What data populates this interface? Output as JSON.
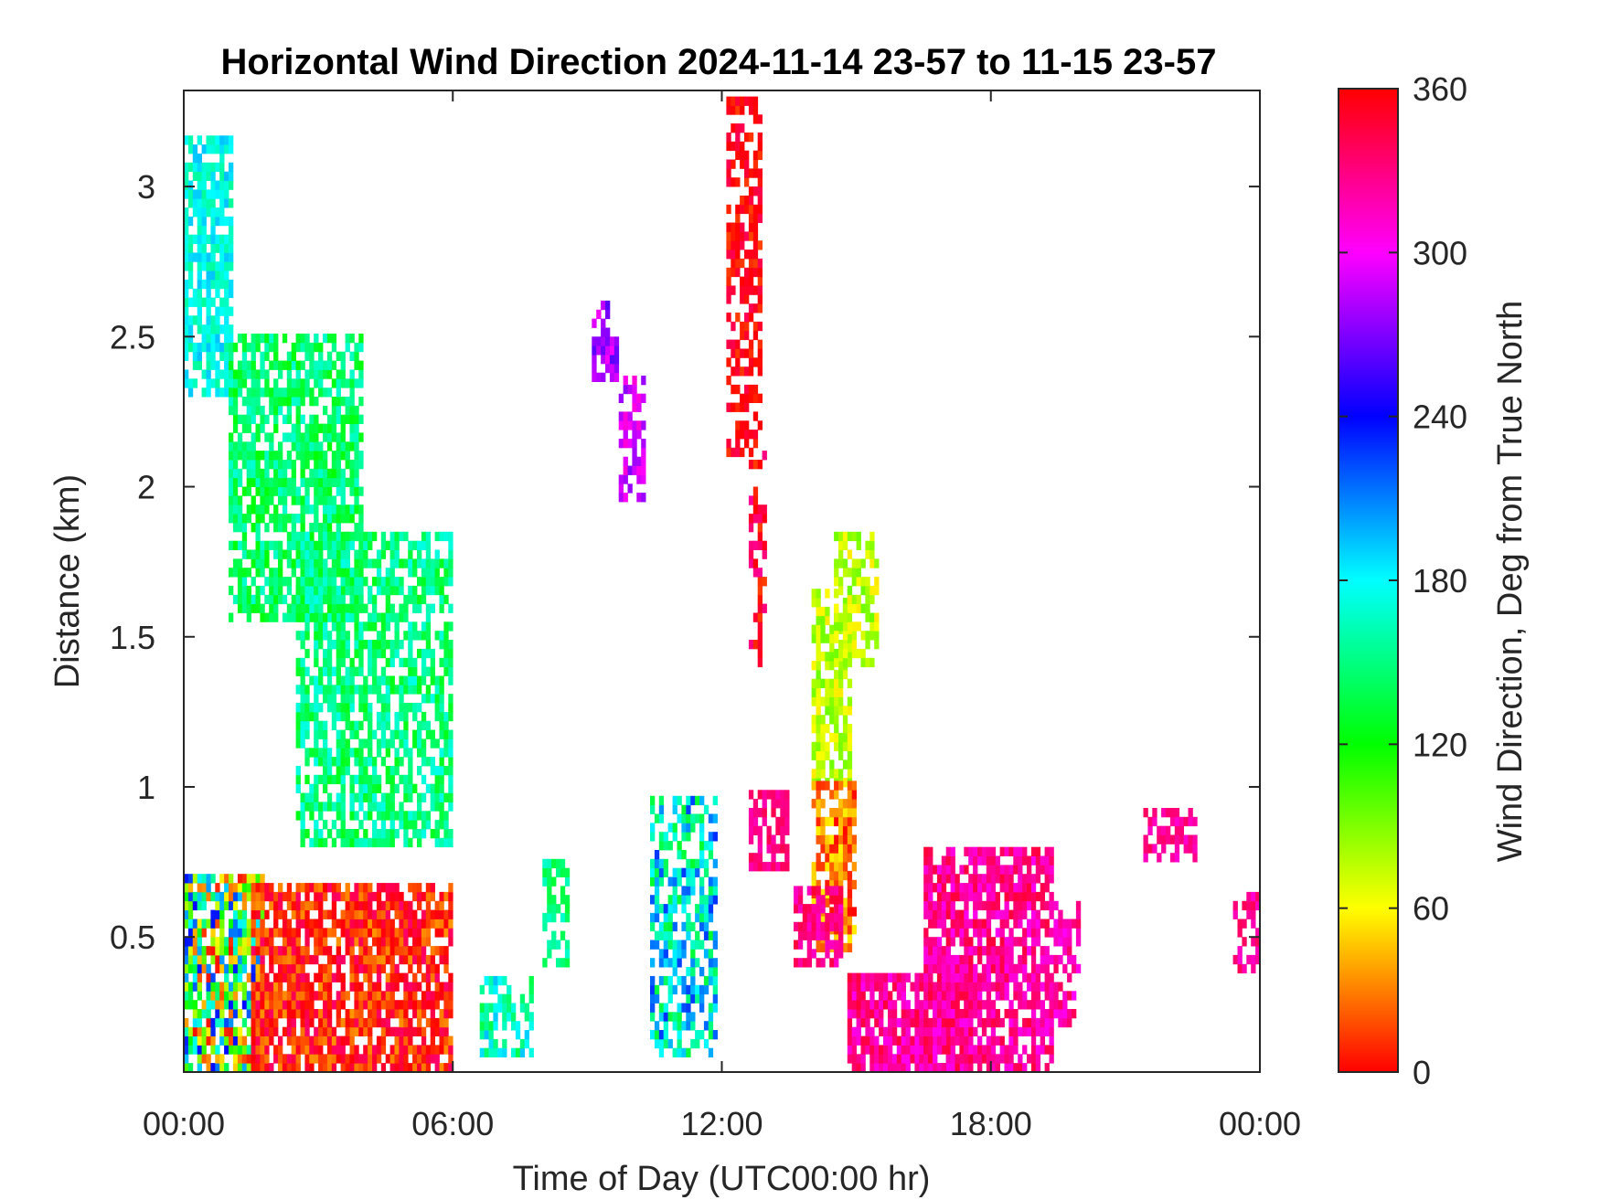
{
  "chart_data": {
    "type": "heatmap",
    "title": "Horizontal Wind Direction 2024-11-14 23-57 to 11-15 23-57",
    "xlabel": "Time of Day (UTC00:00 hr)",
    "ylabel": "Distance (km)",
    "colorbar_label": "Wind Direction, Deg from True North",
    "xlim": [
      0,
      24
    ],
    "ylim": [
      0.05,
      3.32
    ],
    "clim": [
      0,
      360
    ],
    "x_ticks": [
      0,
      6,
      12,
      18,
      24
    ],
    "x_tick_labels": [
      "00:00",
      "06:00",
      "12:00",
      "18:00",
      "00:00"
    ],
    "y_ticks": [
      0.5,
      1,
      1.5,
      2,
      2.5,
      3
    ],
    "y_tick_labels": [
      "0.5",
      "1",
      "1.5",
      "2",
      "2.5",
      "3"
    ],
    "c_ticks": [
      0,
      60,
      120,
      180,
      240,
      300,
      360
    ],
    "c_tick_labels": [
      "0",
      "60",
      "120",
      "180",
      "240",
      "300",
      "360"
    ],
    "colormap": [
      "#ff0000",
      "#ffff00",
      "#00ff00",
      "#00ffff",
      "#0000ff",
      "#ff00ff",
      "#ff0000"
    ],
    "grid": false,
    "regions": [
      {
        "t0": 0.0,
        "t1": 1.1,
        "z0": 2.3,
        "z1": 3.15,
        "dir": 175,
        "spread": 20,
        "density": 0.75
      },
      {
        "t0": 1.0,
        "t1": 4.0,
        "z0": 1.55,
        "z1": 2.5,
        "dir": 145,
        "spread": 25,
        "density": 0.7
      },
      {
        "t0": 2.5,
        "t1": 6.0,
        "z0": 0.8,
        "z1": 1.85,
        "dir": 150,
        "spread": 25,
        "density": 0.65
      },
      {
        "t0": 0.0,
        "t1": 1.8,
        "z0": 0.05,
        "z1": 0.7,
        "dir": 120,
        "spread": 120,
        "density": 0.8
      },
      {
        "t0": 1.5,
        "t1": 6.0,
        "z0": 0.05,
        "z1": 0.68,
        "dir": 5,
        "spread": 30,
        "density": 0.8
      },
      {
        "t0": 6.6,
        "t1": 7.8,
        "z0": 0.1,
        "z1": 0.35,
        "dir": 165,
        "spread": 30,
        "density": 0.6
      },
      {
        "t0": 8.0,
        "t1": 8.6,
        "z0": 0.4,
        "z1": 0.75,
        "dir": 150,
        "spread": 20,
        "density": 0.45
      },
      {
        "t0": 9.1,
        "t1": 9.7,
        "z0": 2.35,
        "z1": 2.62,
        "dir": 280,
        "spread": 20,
        "density": 0.75
      },
      {
        "t0": 9.7,
        "t1": 10.3,
        "z0": 1.95,
        "z1": 2.35,
        "dir": 290,
        "spread": 20,
        "density": 0.55
      },
      {
        "t0": 10.4,
        "t1": 11.9,
        "z0": 0.1,
        "z1": 0.95,
        "dir": 180,
        "spread": 50,
        "density": 0.6
      },
      {
        "t0": 12.1,
        "t1": 12.9,
        "z0": 2.1,
        "z1": 3.3,
        "dir": 358,
        "spread": 18,
        "density": 0.6
      },
      {
        "t0": 12.6,
        "t1": 13.0,
        "z0": 1.4,
        "z1": 2.1,
        "dir": 350,
        "spread": 25,
        "density": 0.45
      },
      {
        "t0": 12.6,
        "t1": 13.5,
        "z0": 0.72,
        "z1": 0.98,
        "dir": 330,
        "spread": 12,
        "density": 0.7
      },
      {
        "t0": 14.0,
        "t1": 14.9,
        "z0": 1.0,
        "z1": 1.65,
        "dir": 75,
        "spread": 20,
        "density": 0.7
      },
      {
        "t0": 14.5,
        "t1": 15.5,
        "z0": 1.4,
        "z1": 1.85,
        "dir": 75,
        "spread": 20,
        "density": 0.6
      },
      {
        "t0": 14.0,
        "t1": 15.0,
        "z0": 0.45,
        "z1": 1.0,
        "dir": 30,
        "spread": 30,
        "density": 0.75
      },
      {
        "t0": 13.6,
        "t1": 14.7,
        "z0": 0.4,
        "z1": 0.65,
        "dir": 330,
        "spread": 18,
        "density": 0.75
      },
      {
        "t0": 14.8,
        "t1": 17.5,
        "z0": 0.05,
        "z1": 0.38,
        "dir": 325,
        "spread": 22,
        "density": 0.85
      },
      {
        "t0": 16.5,
        "t1": 19.4,
        "z0": 0.05,
        "z1": 0.8,
        "dir": 325,
        "spread": 22,
        "density": 0.75
      },
      {
        "t0": 19.3,
        "t1": 20.0,
        "z0": 0.2,
        "z1": 0.6,
        "dir": 320,
        "spread": 20,
        "density": 0.5
      },
      {
        "t0": 21.4,
        "t1": 22.6,
        "z0": 0.75,
        "z1": 0.92,
        "dir": 325,
        "spread": 15,
        "density": 0.65
      },
      {
        "t0": 23.4,
        "t1": 24.0,
        "z0": 0.38,
        "z1": 0.65,
        "dir": 325,
        "spread": 15,
        "density": 0.55
      }
    ]
  }
}
